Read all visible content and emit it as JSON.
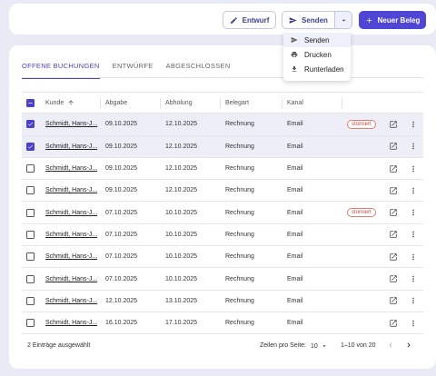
{
  "toolbar": {
    "draft_label": "Entwurf",
    "send_label": "Senden",
    "new_label": "Neuer Beleg"
  },
  "send_menu": {
    "items": [
      {
        "label": "Senden",
        "icon": "send-icon"
      },
      {
        "label": "Drucken",
        "icon": "print-icon"
      },
      {
        "label": "Runterladen",
        "icon": "download-icon"
      }
    ]
  },
  "tabs": [
    {
      "label": "OFFENE BUCHUNGEN",
      "active": true
    },
    {
      "label": "ENTWÜRFE",
      "active": false
    },
    {
      "label": "ABGESCHLOSSEN",
      "active": false
    }
  ],
  "table": {
    "columns": {
      "kunde": "Kunde",
      "abgabe": "Abgabe",
      "abholung": "Abholung",
      "belegart": "Belegart",
      "kanal": "Kanal"
    },
    "rows": [
      {
        "kunde": "Schmidt, Hans-J...",
        "abgabe": "09.10.2025",
        "abholung": "12.10.2025",
        "belegart": "Rechnung",
        "kanal": "Email",
        "status": "storniert",
        "selected": true
      },
      {
        "kunde": "Schmidt, Hans-J...",
        "abgabe": "09.10.2025",
        "abholung": "12.10.2025",
        "belegart": "Rechnung",
        "kanal": "Email",
        "status": "",
        "selected": true
      },
      {
        "kunde": "Schmidt, Hans-J...",
        "abgabe": "09.10.2025",
        "abholung": "12.10.2025",
        "belegart": "Rechnung",
        "kanal": "Email",
        "status": "",
        "selected": false
      },
      {
        "kunde": "Schmidt, Hans-J...",
        "abgabe": "09.10.2025",
        "abholung": "12.10.2025",
        "belegart": "Rechnung",
        "kanal": "Email",
        "status": "",
        "selected": false
      },
      {
        "kunde": "Schmidt, Hans-J...",
        "abgabe": "07.10.2025",
        "abholung": "10.10.2025",
        "belegart": "Rechnung",
        "kanal": "Email",
        "status": "storniert",
        "selected": false
      },
      {
        "kunde": "Schmidt, Hans-J...",
        "abgabe": "07.10.2025",
        "abholung": "10.10.2025",
        "belegart": "Rechnung",
        "kanal": "Email",
        "status": "",
        "selected": false
      },
      {
        "kunde": "Schmidt, Hans-J...",
        "abgabe": "07.10.2025",
        "abholung": "10.10.2025",
        "belegart": "Rechnung",
        "kanal": "Email",
        "status": "",
        "selected": false
      },
      {
        "kunde": "Schmidt, Hans-J...",
        "abgabe": "07.10.2025",
        "abholung": "10.10.2025",
        "belegart": "Rechnung",
        "kanal": "Email",
        "status": "",
        "selected": false
      },
      {
        "kunde": "Schmidt, Hans-J...",
        "abgabe": "12.10.2025",
        "abholung": "13.10.2025",
        "belegart": "Rechnung",
        "kanal": "Email",
        "status": "",
        "selected": false
      },
      {
        "kunde": "Schmidt, Hans-J...",
        "abgabe": "16.10.2025",
        "abholung": "17.10.2025",
        "belegart": "Rechnung",
        "kanal": "Email",
        "status": "",
        "selected": false
      }
    ]
  },
  "footer": {
    "selected_text": "2 Einträge ausgewählt",
    "rows_per_page_label": "Zeilen pro Seite:",
    "rows_per_page_value": "10",
    "range_text": "1–10 von 20"
  },
  "colors": {
    "accent": "#4a42c8",
    "primary_button": "#5046d6",
    "background": "#e8eaf6",
    "badge": "#d2473e"
  }
}
